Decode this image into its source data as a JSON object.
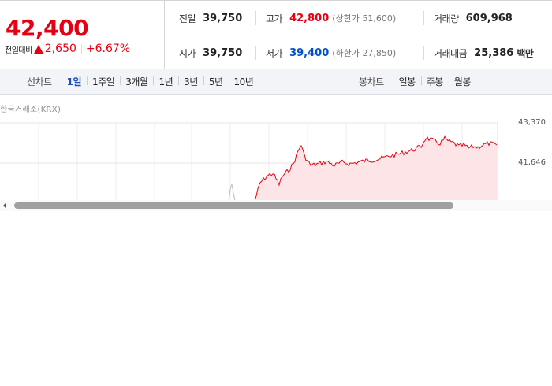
{
  "quote": {
    "price": "42,400",
    "change_label": "전일대비",
    "change_amount": "2,650",
    "change_rate": "+6.67%",
    "prev_close": {
      "label": "전일",
      "value": "39,750"
    },
    "high": {
      "label": "고가",
      "value": "42,800",
      "limit_label": "상한가",
      "limit_value": "51,600"
    },
    "volume": {
      "label": "거래량",
      "value": "609,968"
    },
    "open": {
      "label": "시가",
      "value": "39,750"
    },
    "low": {
      "label": "저가",
      "value": "39,400",
      "limit_label": "하한가",
      "limit_value": "27,850"
    },
    "trade_value": {
      "label": "거래대금",
      "value": "25,386",
      "unit": "백만"
    }
  },
  "tabs": {
    "line_title": "선차트",
    "line_items": [
      "1일",
      "1주일",
      "3개월",
      "1년",
      "3년",
      "5년",
      "10년"
    ],
    "line_active": "1일",
    "candle_title": "봉차트",
    "candle_items": [
      "일봉",
      "주봉",
      "월봉"
    ]
  },
  "chart": {
    "source": "한국거래소(KRX)",
    "y_labels": [
      "43,370",
      "41,646"
    ]
  },
  "colors": {
    "up": "#e60012",
    "down": "#0051c7",
    "active_tab": "#1f4fb8"
  }
}
